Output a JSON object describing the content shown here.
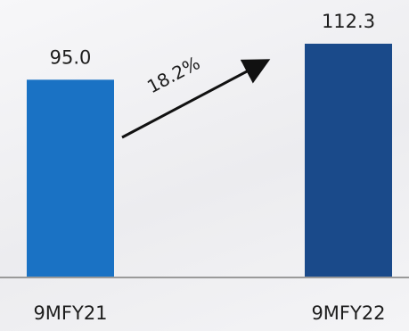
{
  "chart_data": {
    "type": "bar",
    "categories": [
      "9MFY21",
      "9MFY22"
    ],
    "values": [
      95.0,
      112.3
    ],
    "value_labels": [
      "95.0",
      "112.3"
    ],
    "bar_colors": [
      "#1a72c4",
      "#1a4a8a"
    ],
    "annotation": {
      "text": "18.2%",
      "kind": "growth-arrow"
    },
    "ylim": [
      0,
      112.3
    ],
    "grid": false,
    "legend": "none",
    "title": "",
    "xlabel": "",
    "ylabel": ""
  },
  "colors": {
    "axis": "#9a9a9a",
    "text": "#1d1d1d",
    "arrow": "#111111"
  }
}
